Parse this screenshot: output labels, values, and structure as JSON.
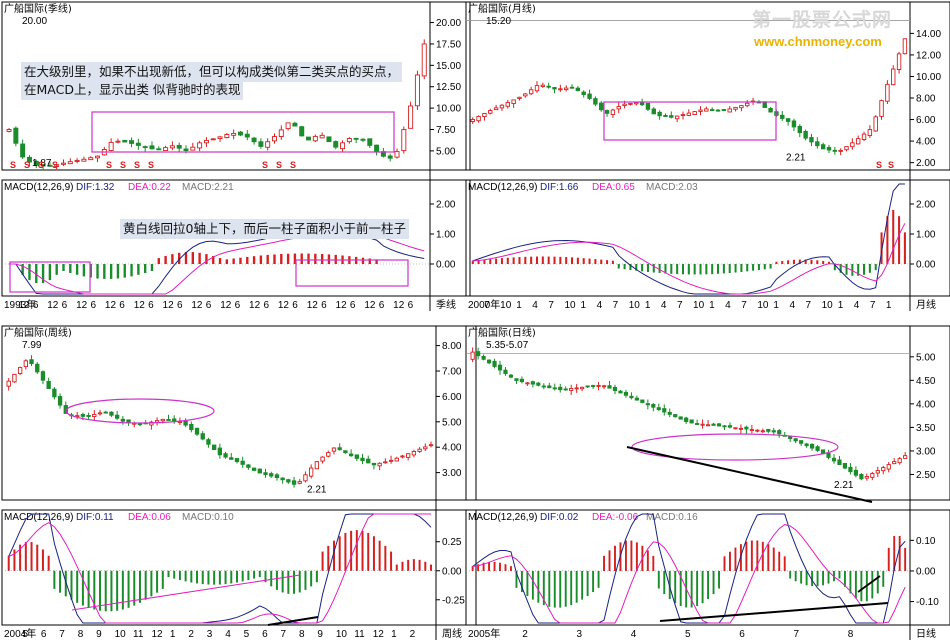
{
  "watermark": {
    "title": "第一股票公式网",
    "url": "www.chnmoney.com"
  },
  "colors": {
    "up": "#d62020",
    "down": "#1a8c2a",
    "dif": "#1a237e",
    "dea": "#e020c0",
    "box": "#cc33cc",
    "axis": "#000000"
  },
  "panels": [
    {
      "id": "quarterly",
      "price_title": "广船国际(季线)",
      "macd_header": {
        "params": "MACD(12,26,9)",
        "dif": "DIF:1.32",
        "dea": "DEA:0.22",
        "macd": "MACD:2.21"
      },
      "period_label": "季线",
      "price_ticks": [
        "20.00",
        "17.50",
        "15.00",
        "12.50",
        "10.00",
        "7.50",
        "5.00"
      ],
      "price_ylim": [
        3.0,
        21.0
      ],
      "macd_ticks": [
        "2.00",
        "1.00",
        "0.00"
      ],
      "macd_ylim": [
        -1.0,
        2.4
      ],
      "x_labels": [
        "1993年",
        "12",
        "6",
        "12",
        "6",
        "12",
        "6",
        "12",
        "6",
        "12",
        "6",
        "12",
        "6",
        "12",
        "6",
        "12",
        "6",
        "12",
        "6",
        "12",
        "6",
        "12",
        "6",
        "12",
        "6",
        "12",
        "6",
        "12",
        "6"
      ],
      "annotations": {
        "high": "20.00",
        "low": "1.87"
      },
      "notes": [
        "在大级别里，如果不出现新低，但可以构成类似第二类买点的买点，",
        "在MACD上，显示出类 似背驰时的表现",
        "黄白线回拉0轴上下，而后一柱子面积小于前一柱子"
      ],
      "s_marks": [
        "S",
        "S",
        "S",
        "S",
        "S",
        "S",
        "S",
        "S",
        "S",
        "S",
        "S"
      ]
    },
    {
      "id": "monthly",
      "price_title": "广船国际(月线)",
      "macd_header": {
        "params": "MACD(12,26,9)",
        "dif": "DIF:1.66",
        "dea": "DEA:0.65",
        "macd": "MACD:2.03"
      },
      "period_label": "月线",
      "price_ticks": [
        "14.00",
        "12.00",
        "10.00",
        "8.00",
        "6.00",
        "4.00",
        "2.00"
      ],
      "price_ylim": [
        1.5,
        15.8
      ],
      "macd_ticks": [
        "2.00",
        "1.00",
        "0.00"
      ],
      "macd_ylim": [
        -1.0,
        2.4
      ],
      "x_labels": [
        "2000年",
        "7",
        "10",
        "1",
        "4",
        "7",
        "10",
        "1",
        "4",
        "7",
        "10",
        "1",
        "4",
        "7",
        "10",
        "1",
        "4",
        "7",
        "10",
        "1",
        "4",
        "7",
        "10",
        "1",
        "4",
        "7",
        "1"
      ],
      "annotations": {
        "high": "15.20",
        "low": "2.21"
      },
      "s_marks": [
        "S",
        "S"
      ]
    },
    {
      "id": "weekly",
      "price_title": "广船国际(周线)",
      "macd_header": {
        "params": "MACD(12,26,9)",
        "dif": "DIF:0.11",
        "dea": "DEA:0.06",
        "macd": "MACD:0.10"
      },
      "period_label": "周线",
      "price_ticks": [
        "8.00",
        "7.00",
        "6.00",
        "5.00",
        "4.00",
        "3.00"
      ],
      "price_ylim": [
        2.0,
        8.3
      ],
      "macd_ticks": [
        "0.25",
        "0.00",
        "-0.25"
      ],
      "macd_ylim": [
        -0.45,
        0.42
      ],
      "x_labels": [
        "2004年",
        "5",
        "6",
        "7",
        "8",
        "9",
        "10",
        "11",
        "12",
        "1",
        "2",
        "3",
        "4",
        "5",
        "6",
        "7",
        "8",
        "9",
        "10",
        "11",
        "12",
        "1",
        "2"
      ],
      "annotations": {
        "high": "7.99",
        "low": "2.21"
      }
    },
    {
      "id": "daily",
      "price_title": "广船国际(日线)",
      "macd_header": {
        "params": "MACD(12,26,9)",
        "dif": "DIF:0.02",
        "dea": "DEA:-0.06",
        "macd": "MACD:0.16"
      },
      "period_label": "日线",
      "price_ticks": [
        "5.00",
        "4.50",
        "4.00",
        "3.50",
        "3.00",
        "2.50"
      ],
      "price_ylim": [
        2.0,
        5.4
      ],
      "macd_ticks": [
        "0.10",
        "0.00",
        "-0.10"
      ],
      "macd_ylim": [
        -0.17,
        0.16
      ],
      "x_labels": [
        "2005年",
        "2",
        "3",
        "4",
        "5",
        "6",
        "7",
        "8"
      ],
      "annotations": {
        "high": "5.35-5.07",
        "low": "2.21"
      }
    }
  ],
  "chart_data": [
    {
      "type": "candlestick",
      "title": "广船国际(季线)",
      "x": [
        "1993年",
        "12",
        "6",
        "12",
        "6",
        "12",
        "6",
        "12",
        "6",
        "12",
        "6",
        "12",
        "6",
        "12",
        "6",
        "12",
        "6",
        "12",
        "6",
        "12",
        "6",
        "12",
        "6",
        "12",
        "6",
        "12",
        "6",
        "12",
        "6"
      ],
      "y_ticks": [
        20.0,
        17.5,
        15.0,
        12.5,
        10.0,
        7.5,
        5.0
      ],
      "ylim": [
        3.0,
        21.0
      ],
      "labeled_points": {
        "high": 20.0,
        "low": 1.87
      },
      "close_approx": [
        7.5,
        4.0,
        3.2,
        3.3,
        3.7,
        4.0,
        4.4,
        6.2,
        6.0,
        5.5,
        5.1,
        5.6,
        5.0,
        6.1,
        6.5,
        7.1,
        6.7,
        5.5,
        6.8,
        8.6,
        6.1,
        7.0,
        5.4,
        6.5,
        6.2,
        4.5,
        4.0,
        9.6,
        17.5
      ]
    },
    {
      "type": "candlestick",
      "title": "广船国际(月线)",
      "x": [
        "2000年",
        "7",
        "10",
        "1",
        "4",
        "7",
        "10",
        "1",
        "4",
        "7",
        "10",
        "1",
        "4",
        "7",
        "10",
        "1",
        "4",
        "7",
        "10",
        "1",
        "4",
        "7",
        "10",
        "1",
        "4",
        "7",
        "1"
      ],
      "y_ticks": [
        14.0,
        12.0,
        10.0,
        8.0,
        6.0,
        4.0,
        2.0
      ],
      "ylim": [
        1.5,
        15.8
      ],
      "labeled_points": {
        "high": 15.2,
        "low": 2.21
      },
      "close_approx": [
        6.0,
        6.8,
        7.5,
        8.2,
        9.3,
        8.8,
        9.0,
        8.0,
        6.5,
        7.4,
        7.6,
        6.4,
        6.2,
        6.6,
        7.0,
        6.8,
        7.2,
        7.8,
        6.6,
        5.8,
        4.3,
        3.3,
        3.0,
        4.0,
        5.2,
        9.5,
        13.5
      ]
    },
    {
      "type": "candlestick",
      "title": "广船国际(周线)",
      "x": [
        "2004年",
        "5",
        "6",
        "7",
        "8",
        "9",
        "10",
        "11",
        "12",
        "1",
        "2",
        "3",
        "4",
        "5",
        "6",
        "7",
        "8",
        "9",
        "10",
        "11",
        "12",
        "1",
        "2"
      ],
      "y_ticks": [
        8.0,
        7.0,
        6.0,
        5.0,
        4.0,
        3.0
      ],
      "ylim": [
        2.0,
        8.3
      ],
      "labeled_points": {
        "high": 7.99,
        "low": 2.21
      },
      "close_approx": [
        6.6,
        7.5,
        6.4,
        5.3,
        5.2,
        5.4,
        5.0,
        4.9,
        5.1,
        5.0,
        4.4,
        3.7,
        3.4,
        3.0,
        2.8,
        2.5,
        3.4,
        4.0,
        3.6,
        3.3,
        3.5,
        3.8,
        4.1
      ]
    },
    {
      "type": "candlestick",
      "title": "广船国际(日线)",
      "x": [
        "2005年",
        "2",
        "3",
        "4",
        "5",
        "6",
        "7",
        "8"
      ],
      "y_ticks": [
        5.0,
        4.5,
        4.0,
        3.5,
        3.0,
        2.5
      ],
      "ylim": [
        2.0,
        5.4
      ],
      "labeled_points": {
        "high_range": "5.35-5.07",
        "low": 2.21
      },
      "close_approx": [
        5.1,
        4.5,
        4.3,
        4.4,
        4.0,
        3.6,
        3.5,
        3.4,
        3.0,
        2.4,
        2.9
      ]
    }
  ]
}
